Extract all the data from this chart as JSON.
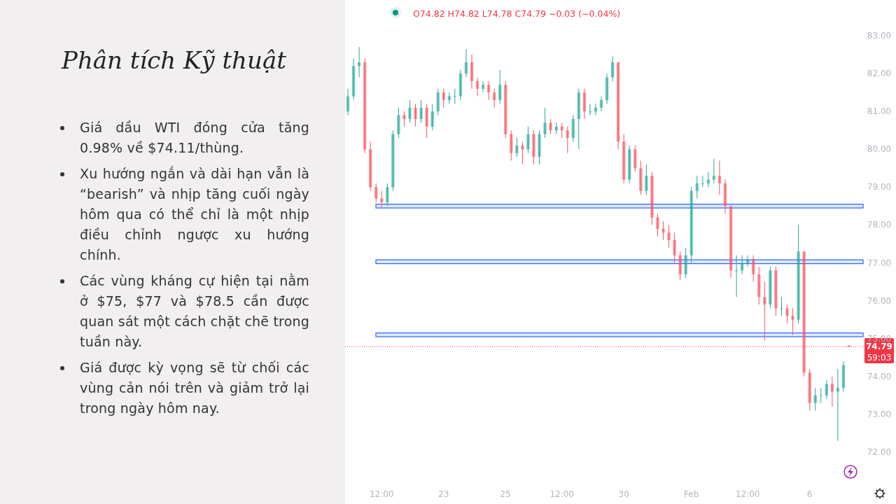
{
  "chart_data": {
    "type": "candlestick",
    "title": "Phân tích Kỹ thuật",
    "categories": [
      null,
      null,
      null,
      null,
      null,
      null,
      "12:00",
      null,
      null,
      null,
      null,
      null,
      null,
      null,
      null,
      null,
      null,
      "23",
      null,
      null,
      null,
      null,
      null,
      null,
      null,
      null,
      null,
      null,
      "25",
      null,
      null,
      null,
      null,
      null,
      null,
      null,
      null,
      null,
      "12:00",
      null,
      null,
      null,
      null,
      null,
      null,
      null,
      null,
      null,
      null,
      "30",
      null,
      null,
      null,
      null,
      null,
      null,
      null,
      null,
      null,
      null,
      null,
      "Feb",
      null,
      null,
      null,
      null,
      null,
      null,
      null,
      null,
      null,
      "12:00",
      null,
      null,
      null,
      null,
      null,
      null,
      null,
      null,
      null,
      null,
      "6",
      null,
      null,
      null,
      null,
      null,
      null,
      null
    ],
    "ohlc": [
      [
        81.0,
        81.6,
        80.9,
        81.4
      ],
      [
        81.4,
        82.4,
        81.3,
        82.2
      ],
      [
        82.2,
        82.7,
        81.9,
        82.3
      ],
      [
        82.3,
        82.4,
        79.9,
        80.0
      ],
      [
        80.0,
        80.2,
        78.9,
        79.0
      ],
      [
        79.0,
        79.1,
        78.6,
        78.7
      ],
      [
        78.7,
        78.9,
        78.45,
        78.6
      ],
      [
        78.6,
        79.1,
        78.5,
        79.0
      ],
      [
        79.0,
        80.5,
        78.9,
        80.4
      ],
      [
        80.4,
        81.1,
        80.3,
        80.9
      ],
      [
        80.9,
        81.0,
        80.6,
        80.8
      ],
      [
        80.8,
        81.3,
        80.7,
        81.1
      ],
      [
        81.1,
        81.2,
        80.6,
        80.8
      ],
      [
        80.8,
        81.3,
        80.7,
        81.1
      ],
      [
        81.1,
        81.2,
        80.3,
        80.6
      ],
      [
        80.6,
        81.2,
        80.5,
        81.0
      ],
      [
        81.0,
        81.6,
        80.9,
        81.5
      ],
      [
        81.5,
        81.6,
        81.1,
        81.3
      ],
      [
        81.3,
        81.5,
        81.2,
        81.4
      ],
      [
        81.4,
        81.6,
        81.2,
        81.4
      ],
      [
        81.4,
        82.1,
        81.3,
        82.0
      ],
      [
        82.0,
        82.65,
        81.9,
        82.3
      ],
      [
        82.3,
        82.5,
        81.6,
        81.8
      ],
      [
        81.8,
        81.9,
        81.4,
        81.6
      ],
      [
        81.6,
        81.8,
        81.5,
        81.7
      ],
      [
        81.7,
        81.8,
        81.3,
        81.5
      ],
      [
        81.5,
        81.6,
        81.1,
        81.3
      ],
      [
        81.3,
        82.1,
        81.2,
        81.7
      ],
      [
        81.7,
        81.8,
        80.3,
        80.4
      ],
      [
        80.4,
        80.5,
        79.7,
        79.9
      ],
      [
        79.9,
        80.3,
        79.8,
        80.1
      ],
      [
        80.1,
        80.2,
        79.6,
        80.0
      ],
      [
        80.0,
        80.6,
        79.9,
        80.4
      ],
      [
        80.4,
        80.5,
        79.6,
        79.8
      ],
      [
        79.8,
        80.5,
        79.6,
        80.4
      ],
      [
        80.4,
        81.1,
        80.3,
        80.7
      ],
      [
        80.7,
        80.8,
        80.4,
        80.5
      ],
      [
        80.5,
        80.7,
        80.4,
        80.6
      ],
      [
        80.6,
        80.7,
        80.3,
        80.5
      ],
      [
        80.5,
        80.6,
        79.9,
        80.3
      ],
      [
        80.3,
        80.9,
        80.2,
        80.8
      ],
      [
        80.8,
        81.6,
        80.0,
        81.5
      ],
      [
        81.5,
        81.6,
        80.8,
        81.0
      ],
      [
        81.0,
        81.2,
        80.9,
        81.0
      ],
      [
        81.0,
        81.2,
        80.9,
        81.1
      ],
      [
        81.1,
        81.4,
        81.0,
        81.3
      ],
      [
        81.3,
        82.0,
        81.2,
        81.9
      ],
      [
        81.9,
        82.45,
        81.8,
        82.3
      ],
      [
        82.3,
        82.3,
        80.0,
        80.2
      ],
      [
        80.2,
        80.4,
        79.1,
        79.2
      ],
      [
        79.2,
        80.1,
        79.1,
        80.0
      ],
      [
        80.0,
        80.1,
        79.4,
        79.5
      ],
      [
        79.5,
        79.7,
        78.8,
        78.9
      ],
      [
        78.9,
        79.6,
        78.8,
        79.3
      ],
      [
        79.3,
        79.4,
        78.0,
        78.2
      ],
      [
        78.2,
        78.3,
        77.7,
        77.9
      ],
      [
        77.9,
        78.1,
        77.6,
        77.8
      ],
      [
        77.8,
        78.0,
        77.4,
        77.6
      ],
      [
        77.6,
        77.8,
        77.0,
        77.2
      ],
      [
        77.2,
        77.3,
        76.55,
        76.7
      ],
      [
        76.7,
        77.4,
        76.6,
        77.2
      ],
      [
        77.2,
        79.0,
        77.0,
        78.9
      ],
      [
        78.9,
        79.3,
        78.7,
        79.1
      ],
      [
        79.1,
        79.3,
        79.0,
        79.1
      ],
      [
        79.1,
        79.4,
        79.0,
        79.2
      ],
      [
        79.2,
        79.75,
        79.1,
        79.3
      ],
      [
        79.3,
        79.7,
        78.8,
        79.1
      ],
      [
        79.1,
        79.2,
        78.3,
        78.5
      ],
      [
        78.5,
        78.5,
        76.6,
        76.8
      ],
      [
        76.8,
        77.2,
        76.1,
        76.8
      ],
      [
        76.8,
        77.2,
        76.7,
        77.0
      ],
      [
        77.0,
        77.2,
        76.9,
        77.1
      ],
      [
        77.1,
        77.2,
        76.5,
        76.7
      ],
      [
        76.7,
        76.9,
        75.9,
        76.1
      ],
      [
        76.1,
        76.5,
        74.95,
        75.9
      ],
      [
        75.9,
        76.9,
        75.8,
        76.8
      ],
      [
        76.8,
        76.9,
        75.6,
        75.8
      ],
      [
        75.8,
        76.1,
        75.6,
        75.8
      ],
      [
        75.8,
        75.9,
        75.4,
        75.6
      ],
      [
        75.6,
        75.8,
        75.1,
        75.5
      ],
      [
        75.5,
        78.0,
        75.4,
        77.3
      ],
      [
        77.3,
        77.3,
        74.0,
        74.1
      ],
      [
        74.1,
        74.2,
        73.1,
        73.3
      ],
      [
        73.3,
        73.7,
        73.1,
        73.5
      ],
      [
        73.5,
        73.7,
        73.3,
        73.5
      ],
      [
        73.5,
        73.9,
        73.4,
        73.8
      ],
      [
        73.8,
        74.0,
        73.2,
        73.6
      ],
      [
        73.6,
        74.2,
        72.3,
        73.7
      ],
      [
        73.7,
        74.4,
        73.6,
        74.3
      ],
      [
        74.82,
        74.82,
        74.78,
        74.79
      ]
    ],
    "ylim": [
      72,
      83
    ],
    "yticks": [
      {
        "value": 72,
        "label": "72.00"
      },
      {
        "value": 73,
        "label": "73.00"
      },
      {
        "value": 74,
        "label": "74.00"
      },
      {
        "value": 75,
        "label": "75.00"
      },
      {
        "value": 76,
        "label": "76.00"
      },
      {
        "value": 77,
        "label": "77.00"
      },
      {
        "value": 78,
        "label": "78.00"
      },
      {
        "value": 79,
        "label": "79.00"
      },
      {
        "value": 80,
        "label": "80.00"
      },
      {
        "value": 81,
        "label": "81.00"
      },
      {
        "value": 82,
        "label": "82.00"
      },
      {
        "value": 83,
        "label": "83.00"
      }
    ],
    "bands": [
      {
        "axis": "y",
        "from": 78.45,
        "to": 78.55,
        "color": "#2962ff"
      },
      {
        "axis": "y",
        "from": 76.98,
        "to": 77.08,
        "color": "#2962ff"
      },
      {
        "axis": "y",
        "from": 75.05,
        "to": 75.15,
        "color": "#2962ff"
      }
    ],
    "ref_lines": [
      {
        "axis": "y",
        "value": 74.79,
        "label": "74.79",
        "color": "#f23645",
        "line_style": "dotted"
      }
    ],
    "annotations": [
      "O74.82 H74.82 L74.78 C74.79 −0.03 (−0.04%)",
      "59:03",
      "Giá dầu WTI đóng cửa tăng 0.98% về $74.11/thùng.",
      "Xu hướng ngắn và dài hạn vẫn là “bearish” và nhịp tăng cuối ngày hôm qua có thể chỉ là một nhịp điều chỉnh ngược xu hướng chính.",
      "Các vùng kháng cự hiện tại nằm ở $75, $77 và $78.5 cần được quan sát một cách chặt chẽ trong tuần này.",
      "Giá được kỳ vọng sẽ từ chối các vùng cản nói trên và giảm trở lại trong ngày hôm nay."
    ],
    "grid": false
  }
}
